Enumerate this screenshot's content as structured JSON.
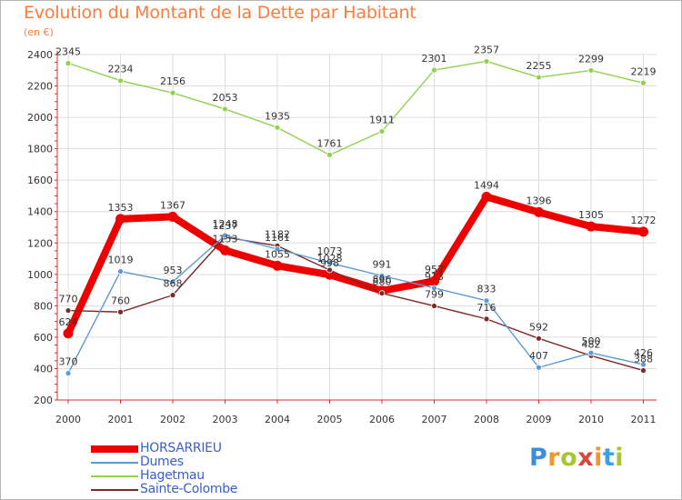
{
  "header": {
    "title": "Evolution du Montant de la Dette par Habitant",
    "subtitle": "(en €)"
  },
  "colors": {
    "title": "#ff7a3c",
    "axis": "#d23030",
    "gridline": "#dddddd",
    "legend_text": "#3a5ecb"
  },
  "logo": {
    "text": "Proxiti",
    "letter_colors": [
      "#3a8ee0",
      "#f0962a",
      "#a7c636",
      "#d8463c",
      "#f0962a",
      "#3aa0e0",
      "#a7c636"
    ]
  },
  "chart_data": {
    "type": "line",
    "title": "Evolution du Montant de la Dette par Habitant",
    "ylabel": "(en €)",
    "ylim": [
      200,
      2400
    ],
    "yticks": [
      200,
      400,
      600,
      800,
      1000,
      1200,
      1400,
      1600,
      1800,
      2000,
      2200,
      2400
    ],
    "categories": [
      "2000",
      "2001",
      "2002",
      "2003",
      "2004",
      "2005",
      "2006",
      "2007",
      "2008",
      "2009",
      "2010",
      "2011"
    ],
    "grid": true,
    "legend_position": "bottom-left",
    "series": [
      {
        "name": "HORSARRIEU",
        "color": "#ee0000",
        "values": [
          624,
          1353,
          1367,
          1153,
          1055,
          998,
          896,
          957,
          1494,
          1396,
          1305,
          1272
        ]
      },
      {
        "name": "Dumes",
        "color": "#5b9bd5",
        "values": [
          370,
          1019,
          953,
          1248,
          1161,
          1073,
          991,
          913,
          833,
          407,
          500,
          426
        ]
      },
      {
        "name": "Hagetmau",
        "color": "#92d050",
        "values": [
          2345,
          2234,
          2156,
          2053,
          1935,
          1761,
          1911,
          2301,
          2357,
          2255,
          2299,
          2219
        ]
      },
      {
        "name": "Sainte-Colombe",
        "color": "#7b2a2a",
        "values": [
          770,
          760,
          868,
          1237,
          1182,
          1028,
          880,
          799,
          716,
          592,
          482,
          388
        ]
      }
    ]
  }
}
